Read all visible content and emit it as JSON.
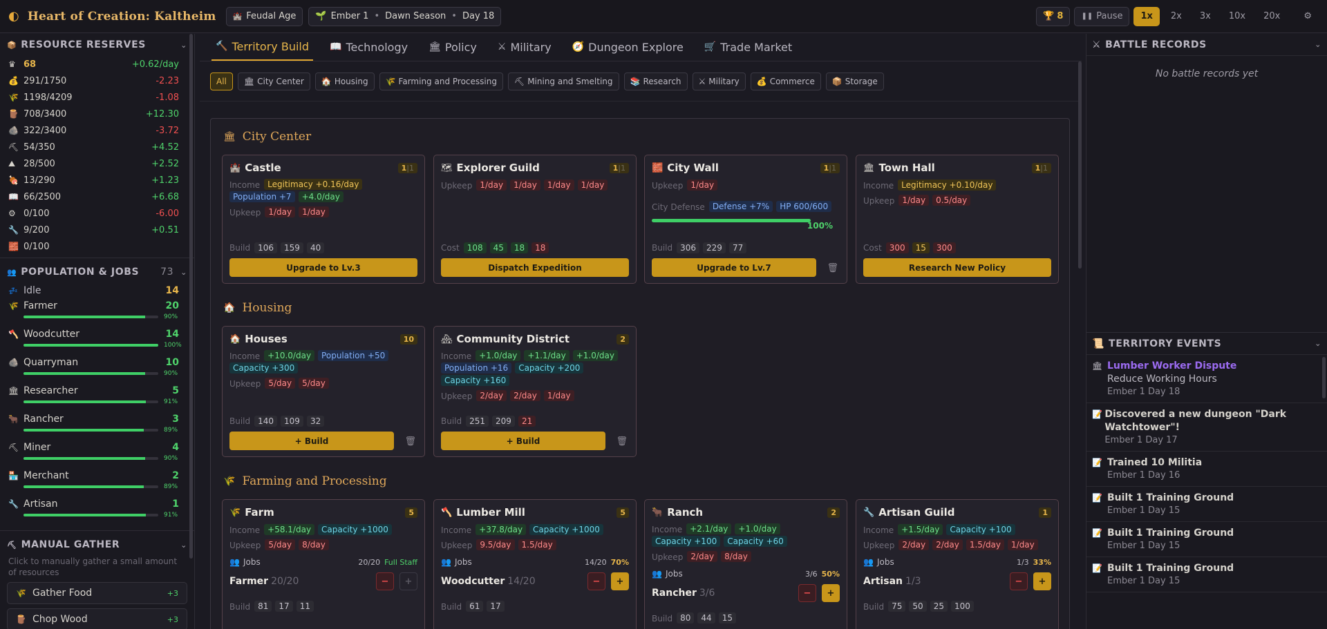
{
  "app": {
    "title": "Heart of Creation: Kaltheim",
    "age": "Feudal Age",
    "era": "Ember 1",
    "season": "Dawn Season",
    "day": "Day 18",
    "trophy": "8",
    "pause": "Pause",
    "speeds": [
      "1x",
      "2x",
      "3x",
      "10x",
      "20x"
    ],
    "active_speed": "1x"
  },
  "sidebar": {
    "resources_title": "RESOURCE RESERVES",
    "resources": [
      {
        "icon": "crown-icon",
        "glyph": "♛",
        "value": "68",
        "rate": "+0.62/day",
        "sign": "pos",
        "gold": true
      },
      {
        "icon": "money-bag-icon",
        "glyph": "💰",
        "value": "291/1750",
        "rate": "-2.23",
        "sign": "neg"
      },
      {
        "icon": "wheat-icon",
        "glyph": "🌾",
        "value": "1198/4209",
        "rate": "-1.08",
        "sign": "neg"
      },
      {
        "icon": "wood-icon",
        "glyph": "🪵",
        "value": "708/3400",
        "rate": "+12.30",
        "sign": "pos"
      },
      {
        "icon": "stone-icon",
        "glyph": "🪨",
        "value": "322/3400",
        "rate": "-3.72",
        "sign": "neg"
      },
      {
        "icon": "pickaxe-icon",
        "glyph": "⛏",
        "value": "54/350",
        "rate": "+4.52",
        "sign": "pos"
      },
      {
        "icon": "ore-icon",
        "glyph": "⛰",
        "value": "28/500",
        "rate": "+2.52",
        "sign": "pos"
      },
      {
        "icon": "meat-icon",
        "glyph": "🍖",
        "value": "13/290",
        "rate": "+1.23",
        "sign": "pos"
      },
      {
        "icon": "book-icon",
        "glyph": "📖",
        "value": "66/2500",
        "rate": "+6.68",
        "sign": "pos"
      },
      {
        "icon": "gear-icon",
        "glyph": "⚙",
        "value": "0/100",
        "rate": "-6.00",
        "sign": "neg"
      },
      {
        "icon": "wrench-icon",
        "glyph": "🔧",
        "value": "9/200",
        "rate": "+0.51",
        "sign": "pos"
      },
      {
        "icon": "brick-icon",
        "glyph": "🧱",
        "value": "0/100",
        "rate": "",
        "sign": "pos"
      }
    ],
    "population_title": "POPULATION & JOBS",
    "population_count": "73",
    "idle_label": "Idle",
    "idle_count": "14",
    "jobs": [
      {
        "icon": "wheat-icon",
        "glyph": "🌾",
        "name": "Farmer",
        "count": "20",
        "pct": "90%",
        "fill": 0.9
      },
      {
        "icon": "axe-icon",
        "glyph": "🪓",
        "name": "Woodcutter",
        "count": "14",
        "pct": "100%",
        "fill": 1.0
      },
      {
        "icon": "stone-icon",
        "glyph": "🪨",
        "name": "Quarryman",
        "count": "10",
        "pct": "90%",
        "fill": 0.9
      },
      {
        "icon": "building-icon",
        "glyph": "🏛",
        "name": "Researcher",
        "count": "5",
        "pct": "91%",
        "fill": 0.91
      },
      {
        "icon": "ox-icon",
        "glyph": "🐂",
        "name": "Rancher",
        "count": "3",
        "pct": "89%",
        "fill": 0.89
      },
      {
        "icon": "pickaxe-icon",
        "glyph": "⛏",
        "name": "Miner",
        "count": "4",
        "pct": "90%",
        "fill": 0.9
      },
      {
        "icon": "shop-icon",
        "glyph": "🏪",
        "name": "Merchant",
        "count": "2",
        "pct": "89%",
        "fill": 0.89
      },
      {
        "icon": "wrench-icon",
        "glyph": "🔧",
        "name": "Artisan",
        "count": "1",
        "pct": "91%",
        "fill": 0.91
      }
    ],
    "gather_title": "MANUAL GATHER",
    "gather_note": "Click to manually gather a small amount of resources",
    "gather_buttons": [
      {
        "label": "Gather Food",
        "plus": "+3"
      },
      {
        "label": "Chop Wood",
        "plus": "+3"
      }
    ]
  },
  "main": {
    "tabs": [
      "Territory Build",
      "Technology",
      "Policy",
      "Military",
      "Dungeon Explore",
      "Trade Market"
    ],
    "filters": [
      "All",
      "City Center",
      "Housing",
      "Farming and Processing",
      "Mining and Smelting",
      "Research",
      "Military",
      "Commerce",
      "Storage"
    ],
    "groups": {
      "city_center": "City Center",
      "housing": "Housing",
      "farming": "Farming and Processing"
    },
    "cards": {
      "castle": {
        "name": "Castle",
        "level": "1",
        "max": "1",
        "income": [
          "Legitimacy +0.16/day",
          "Population +7",
          "+4.0/day"
        ],
        "upkeep": [
          "1/day",
          "1/day"
        ],
        "cost_label": "Build",
        "cost": [
          "106",
          "159",
          "40"
        ],
        "action": "Upgrade to Lv.3"
      },
      "explorer": {
        "name": "Explorer Guild",
        "level": "1",
        "max": "1",
        "upkeep": [
          "1/day",
          "1/day",
          "1/day",
          "1/day"
        ],
        "cost_label": "Cost",
        "cost": [
          "108",
          "45",
          "18",
          "18"
        ],
        "action": "Dispatch Expedition"
      },
      "wall": {
        "name": "City Wall",
        "level": "1",
        "max": "1",
        "upkeep": [
          "1/day"
        ],
        "defense_label": "City Defense",
        "defense": "Defense +7%",
        "hp": "HP 600/600",
        "def_pct": "100%",
        "def_fill": 1.0,
        "cost_label": "Build",
        "cost": [
          "306",
          "229",
          "77"
        ],
        "action": "Upgrade to Lv.7"
      },
      "hall": {
        "name": "Town Hall",
        "level": "1",
        "max": "1",
        "income": [
          "Legitimacy +0.10/day"
        ],
        "upkeep": [
          "1/day",
          "0.5/day"
        ],
        "cost_label": "Cost",
        "cost": [
          "300",
          "15",
          "300"
        ],
        "action": "Research New Policy"
      },
      "houses": {
        "name": "Houses",
        "level": "10",
        "income": [
          "+10.0/day",
          "Population +50",
          "Capacity +300"
        ],
        "upkeep": [
          "5/day",
          "5/day"
        ],
        "cost_label": "Build",
        "cost": [
          "140",
          "109",
          "32"
        ],
        "action": "+ Build"
      },
      "community": {
        "name": "Community District",
        "level": "2",
        "income": [
          "+1.0/day",
          "+1.1/day",
          "+1.0/day",
          "Population +16",
          "Capacity +200",
          "Capacity +160"
        ],
        "upkeep": [
          "2/day",
          "2/day",
          "1/day"
        ],
        "cost_label": "Build",
        "cost": [
          "251",
          "209",
          "21"
        ],
        "action": "+ Build"
      },
      "farm": {
        "name": "Farm",
        "level": "5",
        "income": [
          "+58.1/day",
          "Capacity +1000"
        ],
        "upkeep": [
          "5/day",
          "8/day"
        ],
        "jobs_label": "Jobs",
        "jobs_ratio": "20/20",
        "jobs_status": "Full Staff",
        "worker": "Farmer",
        "worker_count": "20/20",
        "cost": [
          "81",
          "17",
          "11"
        ]
      },
      "lumber": {
        "name": "Lumber Mill",
        "level": "5",
        "income": [
          "+37.8/day",
          "Capacity +1000"
        ],
        "upkeep": [
          "9.5/day",
          "1.5/day"
        ],
        "jobs_label": "Jobs",
        "jobs_ratio": "14/20",
        "jobs_status": "70%",
        "worker": "Woodcutter",
        "worker_count": "14/20",
        "cost": [
          "61",
          "17"
        ]
      },
      "ranch": {
        "name": "Ranch",
        "level": "2",
        "income": [
          "+2.1/day",
          "+1.0/day",
          "Capacity +100",
          "Capacity +60"
        ],
        "upkeep": [
          "2/day",
          "8/day"
        ],
        "jobs_label": "Jobs",
        "jobs_ratio": "3/6",
        "jobs_status": "50%",
        "worker": "Rancher",
        "worker_count": "3/6",
        "cost": [
          "80",
          "44",
          "15"
        ]
      },
      "artisan": {
        "name": "Artisan Guild",
        "level": "1",
        "income": [
          "+1.5/day",
          "Capacity +100"
        ],
        "upkeep": [
          "2/day",
          "2/day",
          "1.5/day",
          "1/day"
        ],
        "jobs_label": "Jobs",
        "jobs_ratio": "1/3",
        "jobs_status": "33%",
        "worker": "Artisan",
        "worker_count": "1/3",
        "cost": [
          "75",
          "50",
          "25",
          "100"
        ]
      }
    },
    "labels": {
      "income": "Income",
      "upkeep": "Upkeep"
    }
  },
  "right": {
    "battle_title": "BATTLE RECORDS",
    "no_battle": "No battle records yet",
    "events_title": "TERRITORY EVENTS",
    "events": [
      {
        "title": "Lumber Worker Dispute",
        "sub": "Reduce Working Hours",
        "date": "Ember 1 Day 18",
        "highlight": true
      },
      {
        "title": "Discovered a new dungeon \"Dark Watchtower\"!",
        "sub": "",
        "date": "Ember 1 Day 17"
      },
      {
        "title": "Trained 10 Militia",
        "sub": "",
        "date": "Ember 1 Day 16"
      },
      {
        "title": "Built 1 Training Ground",
        "sub": "",
        "date": "Ember 1 Day 15"
      },
      {
        "title": "Built 1 Training Ground",
        "sub": "",
        "date": "Ember 1 Day 15"
      },
      {
        "title": "Built 1 Training Ground",
        "sub": "",
        "date": "Ember 1 Day 15"
      }
    ]
  }
}
